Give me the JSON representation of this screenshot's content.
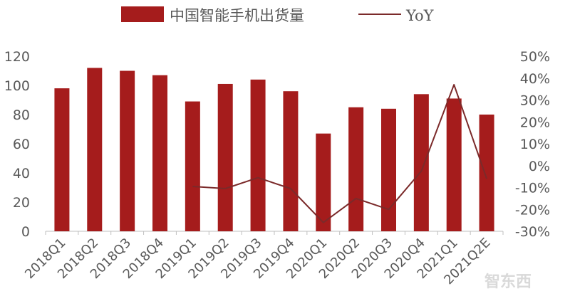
{
  "chart_data": {
    "type": "bar",
    "categories": [
      "2018Q1",
      "2018Q2",
      "2018Q3",
      "2018Q4",
      "2019Q1",
      "2019Q2",
      "2019Q3",
      "2019Q4",
      "2020Q1",
      "2020Q2",
      "2020Q3",
      "2020Q4",
      "2021Q1",
      "2021Q2E"
    ],
    "series": [
      {
        "name": "中国智能手机出货量",
        "type": "bar",
        "axis": "left",
        "color": "#a51c1c",
        "values": [
          98,
          112,
          110,
          107,
          89,
          101,
          104,
          96,
          67,
          85,
          84,
          94,
          91,
          80
        ]
      },
      {
        "name": "YoY",
        "type": "line",
        "axis": "right",
        "color": "#7b2a2a",
        "values": [
          null,
          null,
          null,
          null,
          -9.5,
          -10.5,
          -5.5,
          -10.5,
          -26,
          -15,
          -20,
          -2.5,
          37,
          -6
        ]
      }
    ],
    "y_left": {
      "min": 0,
      "max": 120,
      "ticks": [
        0,
        20,
        40,
        60,
        80,
        100,
        120
      ]
    },
    "y_right": {
      "min": -30,
      "max": 50,
      "ticks": [
        "-30%",
        "-20%",
        "-10%",
        "0%",
        "10%",
        "20%",
        "30%",
        "40%",
        "50%"
      ]
    },
    "legend_position": "top",
    "grid": false
  },
  "watermark": "智东西"
}
